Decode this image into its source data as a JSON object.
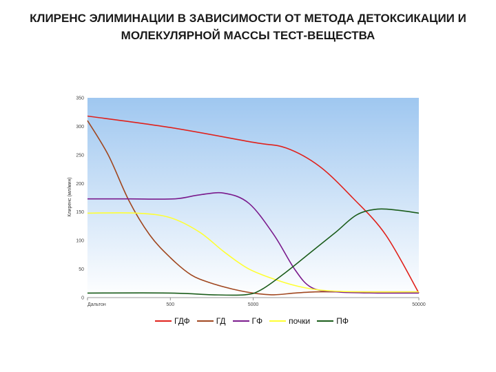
{
  "title": {
    "line1": "КЛИРЕНС ЭЛИМИНАЦИИ В ЗАВИСИМОСТИ ОТ МЕТОДА ДЕТОКСИКАЦИИ И",
    "line2": "МОЛЕКУЛЯРНОЙ МАССЫ ТЕСТ-ВЕЩЕСТВА"
  },
  "chart_data": {
    "type": "line",
    "ylabel": "Клиренс (мл/мин)",
    "ylim": [
      0,
      350
    ],
    "yticks": [
      0,
      50,
      100,
      150,
      200,
      250,
      300,
      350
    ],
    "xlim": [
      0,
      4
    ],
    "xticks": [
      {
        "label": "Дальтон",
        "pos": 0
      },
      {
        "label": "500",
        "pos": 1
      },
      {
        "label": "5000",
        "pos": 2
      },
      {
        "label": "50000",
        "pos": 4
      }
    ],
    "legend_position": "bottom",
    "series": [
      {
        "name": "ГДФ",
        "color": "#e0201a",
        "points": [
          [
            0,
            318
          ],
          [
            1,
            298
          ],
          [
            2,
            272
          ],
          [
            2.4,
            262
          ],
          [
            2.8,
            230
          ],
          [
            3.2,
            175
          ],
          [
            3.6,
            110
          ],
          [
            4,
            8
          ]
        ]
      },
      {
        "name": "ГД",
        "color": "#a0461e",
        "points": [
          [
            0,
            310
          ],
          [
            0.25,
            250
          ],
          [
            0.5,
            170
          ],
          [
            0.75,
            110
          ],
          [
            1,
            70
          ],
          [
            1.25,
            40
          ],
          [
            1.5,
            25
          ],
          [
            1.75,
            15
          ],
          [
            2,
            8
          ],
          [
            2.25,
            5
          ],
          [
            2.5,
            8
          ],
          [
            2.75,
            10
          ],
          [
            3,
            10
          ],
          [
            3.5,
            10
          ],
          [
            4,
            10
          ]
        ]
      },
      {
        "name": "ГФ",
        "color": "#7a1a8c",
        "points": [
          [
            0,
            173
          ],
          [
            0.5,
            173
          ],
          [
            1.05,
            173
          ],
          [
            1.35,
            180
          ],
          [
            1.65,
            183
          ],
          [
            1.95,
            165
          ],
          [
            2.25,
            110
          ],
          [
            2.5,
            50
          ],
          [
            2.7,
            18
          ],
          [
            3,
            10
          ],
          [
            3.5,
            8
          ],
          [
            4,
            8
          ]
        ]
      },
      {
        "name": "почки",
        "color": "#ffff33",
        "points": [
          [
            0,
            148
          ],
          [
            0.6,
            148
          ],
          [
            1,
            140
          ],
          [
            1.35,
            115
          ],
          [
            1.65,
            80
          ],
          [
            1.95,
            50
          ],
          [
            2.3,
            30
          ],
          [
            2.6,
            18
          ],
          [
            2.9,
            12
          ],
          [
            3.3,
            10
          ],
          [
            4,
            10
          ]
        ]
      },
      {
        "name": "ПФ",
        "color": "#1a5c1a",
        "points": [
          [
            0,
            8
          ],
          [
            1,
            8
          ],
          [
            1.5,
            5
          ],
          [
            1.9,
            5
          ],
          [
            2.1,
            14
          ],
          [
            2.4,
            45
          ],
          [
            2.7,
            80
          ],
          [
            3,
            115
          ],
          [
            3.25,
            145
          ],
          [
            3.5,
            155
          ],
          [
            3.75,
            153
          ],
          [
            4,
            148
          ]
        ]
      }
    ]
  }
}
